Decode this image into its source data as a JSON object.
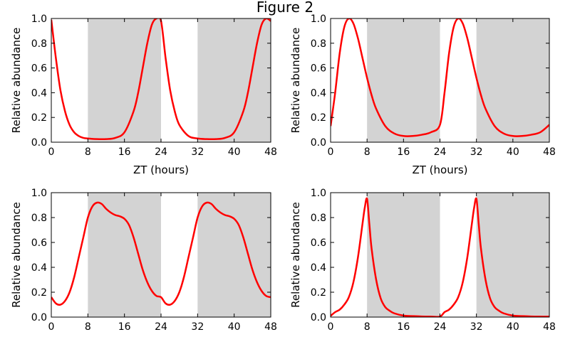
{
  "figure_title": "Figure 2",
  "colors": {
    "line": "#ff0000",
    "shade": "#d3d3d3",
    "frame": "#000000"
  },
  "chart_data": [
    {
      "type": "line",
      "xlabel": "ZT (hours)",
      "ylabel": "Relative abundance",
      "xlim": [
        0,
        48
      ],
      "ylim": [
        0,
        1
      ],
      "xticks": [
        "0",
        "8",
        "16",
        "24",
        "32",
        "40",
        "48"
      ],
      "yticks": [
        "0.0",
        "0.2",
        "0.4",
        "0.6",
        "0.8",
        "1.0"
      ],
      "shaded_intervals": [
        [
          8,
          24
        ],
        [
          32,
          48
        ]
      ],
      "x": [
        0,
        1,
        2,
        3,
        4,
        5,
        6,
        7,
        8,
        10,
        12,
        14,
        16,
        18,
        19,
        20,
        21,
        22,
        23,
        24,
        25,
        26,
        27,
        28,
        30,
        32,
        34,
        36,
        38,
        40,
        42,
        43,
        44,
        45,
        46,
        47,
        48
      ],
      "y": [
        0.99,
        0.68,
        0.42,
        0.25,
        0.14,
        0.08,
        0.05,
        0.035,
        0.03,
        0.025,
        0.025,
        0.035,
        0.08,
        0.25,
        0.4,
        0.6,
        0.8,
        0.95,
        1.0,
        0.98,
        0.68,
        0.42,
        0.25,
        0.14,
        0.05,
        0.03,
        0.025,
        0.025,
        0.035,
        0.08,
        0.25,
        0.4,
        0.6,
        0.8,
        0.95,
        1.0,
        0.98
      ]
    },
    {
      "type": "line",
      "xlabel": "ZT (hours)",
      "ylabel": "Relative abundance",
      "xlim": [
        0,
        48
      ],
      "ylim": [
        0,
        1
      ],
      "xticks": [
        "0",
        "8",
        "16",
        "24",
        "32",
        "40",
        "48"
      ],
      "yticks": [
        "0.0",
        "0.2",
        "0.4",
        "0.6",
        "0.8",
        "1.0"
      ],
      "shaded_intervals": [
        [
          8,
          24
        ],
        [
          32,
          48
        ]
      ],
      "x": [
        0,
        1,
        2,
        3,
        4,
        5,
        6,
        7,
        8,
        9,
        10,
        12,
        14,
        16,
        18,
        20,
        22,
        24,
        25,
        26,
        27,
        28,
        29,
        30,
        31,
        32,
        33,
        34,
        36,
        38,
        40,
        42,
        44,
        46,
        48
      ],
      "y": [
        0.13,
        0.4,
        0.72,
        0.93,
        1.0,
        0.96,
        0.84,
        0.68,
        0.52,
        0.38,
        0.27,
        0.13,
        0.07,
        0.05,
        0.05,
        0.06,
        0.08,
        0.14,
        0.4,
        0.72,
        0.93,
        1.0,
        0.96,
        0.84,
        0.68,
        0.52,
        0.38,
        0.27,
        0.13,
        0.07,
        0.05,
        0.05,
        0.06,
        0.08,
        0.14
      ]
    },
    {
      "type": "line",
      "xlabel": "",
      "ylabel": "Relative abundance",
      "xlim": [
        0,
        48
      ],
      "ylim": [
        0,
        1
      ],
      "xticks": [
        "0",
        "8",
        "16",
        "24",
        "32",
        "40",
        "48"
      ],
      "yticks": [
        "0.0",
        "0.2",
        "0.4",
        "0.6",
        "0.8",
        "1.0"
      ],
      "shaded_intervals": [
        [
          8,
          24
        ],
        [
          32,
          48
        ]
      ],
      "x": [
        0,
        1,
        2,
        3,
        4,
        5,
        6,
        7,
        8,
        9,
        10,
        11,
        12,
        13,
        14,
        15,
        16,
        17,
        18,
        19,
        20,
        21,
        22,
        23,
        24,
        25,
        26,
        27,
        28,
        29,
        30,
        31,
        32,
        33,
        34,
        35,
        36,
        37,
        38,
        39,
        40,
        41,
        42,
        43,
        44,
        45,
        46,
        47,
        48
      ],
      "y": [
        0.16,
        0.11,
        0.1,
        0.13,
        0.2,
        0.32,
        0.48,
        0.64,
        0.8,
        0.89,
        0.92,
        0.91,
        0.87,
        0.84,
        0.82,
        0.81,
        0.79,
        0.74,
        0.64,
        0.51,
        0.38,
        0.28,
        0.21,
        0.17,
        0.16,
        0.11,
        0.1,
        0.13,
        0.2,
        0.32,
        0.48,
        0.64,
        0.8,
        0.89,
        0.92,
        0.91,
        0.87,
        0.84,
        0.82,
        0.81,
        0.79,
        0.74,
        0.64,
        0.51,
        0.38,
        0.28,
        0.21,
        0.17,
        0.16
      ]
    },
    {
      "type": "line",
      "xlabel": "",
      "ylabel": "Relative abundance",
      "xlim": [
        0,
        48
      ],
      "ylim": [
        0,
        1
      ],
      "xticks": [
        "0",
        "8",
        "16",
        "24",
        "32",
        "40",
        "48"
      ],
      "yticks": [
        "0.0",
        "0.2",
        "0.4",
        "0.6",
        "0.8",
        "1.0"
      ],
      "shaded_intervals": [
        [
          8,
          24
        ],
        [
          32,
          48
        ]
      ],
      "x": [
        0,
        1,
        2,
        3,
        4,
        5,
        6,
        7,
        7.5,
        8,
        8.5,
        9,
        10,
        11,
        12,
        13,
        14,
        16,
        18,
        20,
        22,
        24,
        25,
        26,
        27,
        28,
        29,
        30,
        31,
        31.5,
        32,
        32.5,
        33,
        34,
        35,
        36,
        37,
        38,
        40,
        42,
        44,
        46,
        48
      ],
      "y": [
        0.01,
        0.04,
        0.06,
        0.1,
        0.16,
        0.28,
        0.48,
        0.75,
        0.88,
        0.95,
        0.75,
        0.55,
        0.3,
        0.15,
        0.08,
        0.05,
        0.03,
        0.012,
        0.008,
        0.005,
        0.004,
        0.004,
        0.04,
        0.06,
        0.1,
        0.16,
        0.28,
        0.48,
        0.75,
        0.88,
        0.95,
        0.75,
        0.55,
        0.3,
        0.15,
        0.08,
        0.05,
        0.03,
        0.012,
        0.008,
        0.005,
        0.004,
        0.004
      ]
    }
  ]
}
